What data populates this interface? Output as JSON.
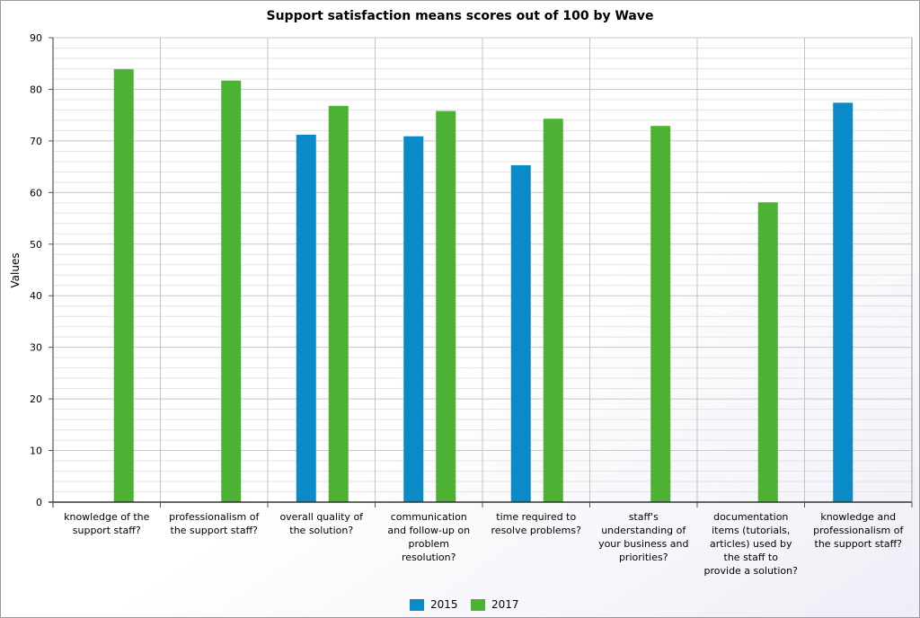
{
  "chart_data": {
    "type": "bar",
    "title": "Support satisfaction means scores out of 100 by Wave",
    "xlabel": "",
    "ylabel": "Values",
    "ylim": [
      0,
      90
    ],
    "yticks": [
      0,
      10,
      20,
      30,
      40,
      50,
      60,
      70,
      80,
      90
    ],
    "grid": true,
    "legend_position": "bottom",
    "categories": [
      [
        "knowledge of the",
        "support staff?"
      ],
      [
        "professionalism of",
        "the support staff?"
      ],
      [
        "overall quality of",
        "the solution?"
      ],
      [
        "communication",
        "and follow-up on",
        "problem",
        "resolution?"
      ],
      [
        "time required to",
        "resolve problems?"
      ],
      [
        "staff's",
        "understanding of",
        "your business and",
        "priorities?"
      ],
      [
        "documentation",
        "items (tutorials,",
        "articles) used by",
        "the staff to",
        "provide a solution?"
      ],
      [
        "knowledge and",
        "professionalism of",
        "the support staff?"
      ]
    ],
    "series": [
      {
        "name": "2015",
        "color": "#0a8ac6",
        "values": [
          null,
          null,
          71.2,
          70.9,
          65.3,
          null,
          null,
          77.4
        ]
      },
      {
        "name": "2017",
        "color": "#4db133",
        "values": [
          83.9,
          81.7,
          76.8,
          75.8,
          74.3,
          72.9,
          58.1,
          null
        ]
      }
    ]
  }
}
